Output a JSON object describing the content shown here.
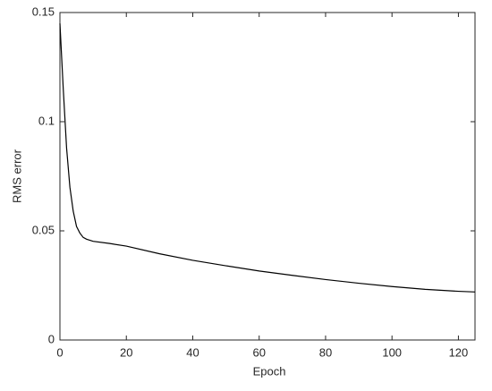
{
  "chart_data": {
    "type": "line",
    "x_label": "Epoch",
    "y_label": "RMS error",
    "x": [
      0,
      1,
      2,
      3,
      4,
      5,
      6,
      7,
      8,
      10,
      15,
      20,
      30,
      40,
      50,
      60,
      70,
      80,
      90,
      100,
      110,
      120,
      125
    ],
    "series": [
      {
        "color": "#000000",
        "values": [
          0.145,
          0.115,
          0.088,
          0.07,
          0.059,
          0.052,
          0.049,
          0.047,
          0.0462,
          0.0452,
          0.0442,
          0.043,
          0.0395,
          0.0365,
          0.034,
          0.0316,
          0.0296,
          0.0277,
          0.026,
          0.0245,
          0.0232,
          0.0223,
          0.022
        ]
      }
    ],
    "xlim": [
      0,
      125
    ],
    "xticks": [
      0,
      20,
      40,
      60,
      80,
      100,
      120
    ],
    "ylim": [
      0,
      0.15
    ],
    "yticks": [
      0,
      0.05,
      0.1,
      0.15
    ]
  }
}
